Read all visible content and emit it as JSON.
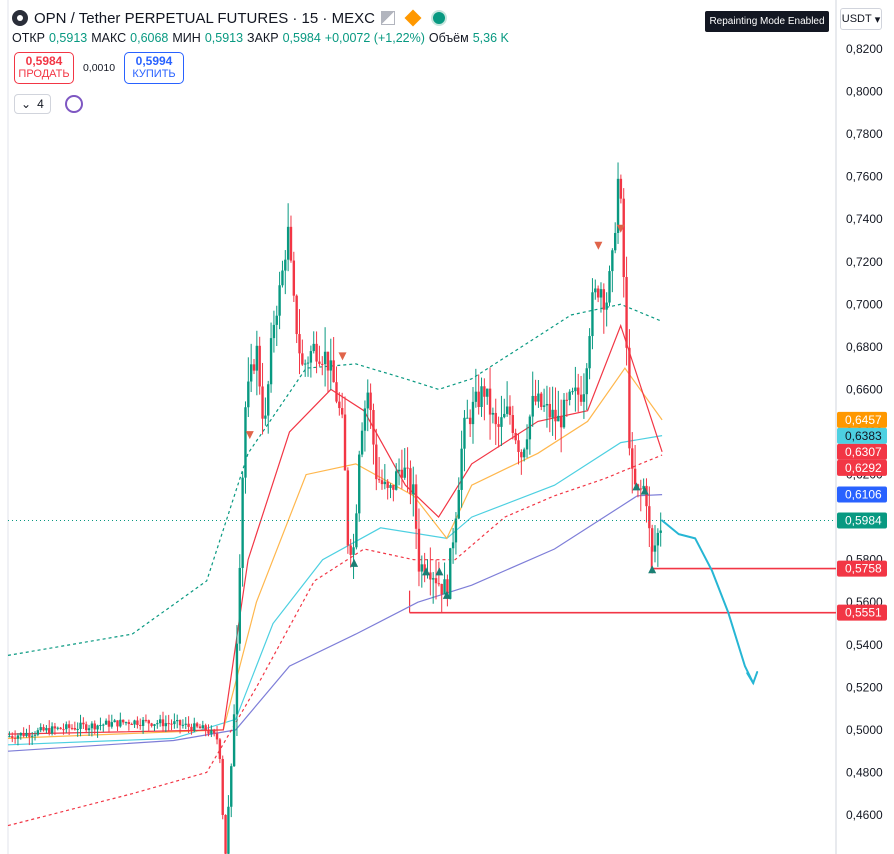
{
  "header": {
    "title": "OPN / Tether PERPETUAL FUTURES · 15 · MEXC",
    "icons": [
      "logo-icon",
      "flag-icon",
      "diamond-icon",
      "status-dot-icon"
    ]
  },
  "ohlc": {
    "open_label": "ОТКР",
    "open": "0,5913",
    "high_label": "МАКС",
    "high": "0,6068",
    "low_label": "МИН",
    "low": "0,5913",
    "close_label": "ЗАКР",
    "close": "0,5984",
    "change": "+0,0072 (+1,22%)",
    "volume_label": "Объём",
    "volume": "5,36 K"
  },
  "trade": {
    "sell_price": "0,5984",
    "sell_label": "ПРОДАТЬ",
    "spread": "0,0010",
    "buy_price": "0,5994",
    "buy_label": "КУПИТЬ"
  },
  "indicators": {
    "count": "4"
  },
  "badge": "Repainting Mode Enabled",
  "currency": "USDT",
  "colors": {
    "up": "#089981",
    "down": "#f23645",
    "orange": "#ff9800",
    "cyan": "#4dd0e1",
    "red": "#f23645",
    "blue": "#2962ff",
    "green": "#089981",
    "purple_ma": "#7e7ed8"
  },
  "chart_data": {
    "type": "line",
    "y_axis": {
      "range": [
        0.44,
        0.83
      ],
      "ticks": [
        "0,8200",
        "0,8000",
        "0,7800",
        "0,7600",
        "0,7400",
        "0,7200",
        "0,7000",
        "0,6800",
        "0,6600",
        "0,6400",
        "0,6200",
        "0,6000",
        "0,5800",
        "0,5600",
        "0,5400",
        "0,5200",
        "0,5000",
        "0,4800",
        "0,4600"
      ],
      "position": "right"
    },
    "price_labels": [
      {
        "value": 0.6457,
        "text": "0,6457",
        "color": "#ff9800",
        "text_color": "#ffffff"
      },
      {
        "value": 0.6383,
        "text": "0,6383",
        "color": "#4dd0e1",
        "text_color": "#131722"
      },
      {
        "value": 0.6307,
        "text": "0,6307",
        "color": "#f23645",
        "text_color": "#ffffff"
      },
      {
        "value": 0.6292,
        "text": "0,6292",
        "color": "#f23645",
        "text_color": "#ffffff"
      },
      {
        "value": 0.6106,
        "text": "0,6106",
        "color": "#2962ff",
        "text_color": "#ffffff"
      },
      {
        "value": 0.5984,
        "text": "0,5984",
        "color": "#089981",
        "text_color": "#ffffff"
      },
      {
        "value": 0.5758,
        "text": "0,5758",
        "color": "#f23645",
        "text_color": "#ffffff"
      },
      {
        "value": 0.5551,
        "text": "0,5551",
        "color": "#f23645",
        "text_color": "#ffffff"
      }
    ],
    "horizontal_lines": [
      {
        "value": 0.5758,
        "from": 0.777,
        "color": "#f23645"
      },
      {
        "value": 0.5551,
        "from": 0.485,
        "color": "#f23645"
      }
    ],
    "current_price": 0.5984,
    "price_path": [
      [
        0.0,
        0.497
      ],
      [
        0.05,
        0.5
      ],
      [
        0.1,
        0.502
      ],
      [
        0.15,
        0.504
      ],
      [
        0.2,
        0.503
      ],
      [
        0.24,
        0.5
      ],
      [
        0.255,
        0.495
      ],
      [
        0.262,
        0.44
      ],
      [
        0.27,
        0.48
      ],
      [
        0.278,
        0.56
      ],
      [
        0.286,
        0.65
      ],
      [
        0.3,
        0.68
      ],
      [
        0.31,
        0.64
      ],
      [
        0.32,
        0.69
      ],
      [
        0.33,
        0.71
      ],
      [
        0.338,
        0.735
      ],
      [
        0.345,
        0.7
      ],
      [
        0.355,
        0.67
      ],
      [
        0.37,
        0.68
      ],
      [
        0.385,
        0.675
      ],
      [
        0.395,
        0.66
      ],
      [
        0.405,
        0.64
      ],
      [
        0.41,
        0.59
      ],
      [
        0.418,
        0.585
      ],
      [
        0.425,
        0.64
      ],
      [
        0.435,
        0.66
      ],
      [
        0.445,
        0.62
      ],
      [
        0.46,
        0.61
      ],
      [
        0.475,
        0.625
      ],
      [
        0.49,
        0.61
      ],
      [
        0.497,
        0.575
      ],
      [
        0.505,
        0.58
      ],
      [
        0.52,
        0.57
      ],
      [
        0.53,
        0.565
      ],
      [
        0.54,
        0.6
      ],
      [
        0.55,
        0.64
      ],
      [
        0.56,
        0.65
      ],
      [
        0.575,
        0.66
      ],
      [
        0.59,
        0.64
      ],
      [
        0.605,
        0.65
      ],
      [
        0.62,
        0.63
      ],
      [
        0.635,
        0.655
      ],
      [
        0.65,
        0.65
      ],
      [
        0.665,
        0.645
      ],
      [
        0.68,
        0.655
      ],
      [
        0.695,
        0.66
      ],
      [
        0.705,
        0.7
      ],
      [
        0.715,
        0.71
      ],
      [
        0.722,
        0.7
      ],
      [
        0.73,
        0.72
      ],
      [
        0.738,
        0.765
      ],
      [
        0.745,
        0.7
      ],
      [
        0.752,
        0.62
      ],
      [
        0.76,
        0.61
      ],
      [
        0.77,
        0.615
      ],
      [
        0.777,
        0.58
      ],
      [
        0.785,
        0.592
      ],
      [
        0.79,
        0.5984
      ]
    ],
    "series": [
      {
        "color": "#7e7ed8",
        "style": "solid",
        "points": [
          [
            0.0,
            0.49
          ],
          [
            0.2,
            0.495
          ],
          [
            0.275,
            0.5
          ],
          [
            0.34,
            0.53
          ],
          [
            0.42,
            0.545
          ],
          [
            0.495,
            0.56
          ],
          [
            0.56,
            0.568
          ],
          [
            0.66,
            0.585
          ],
          [
            0.74,
            0.605
          ],
          [
            0.76,
            0.61
          ],
          [
            0.79,
            0.6106
          ]
        ]
      },
      {
        "color": "#4dd0e1",
        "style": "solid",
        "points": [
          [
            0.0,
            0.493
          ],
          [
            0.2,
            0.496
          ],
          [
            0.275,
            0.505
          ],
          [
            0.32,
            0.55
          ],
          [
            0.38,
            0.58
          ],
          [
            0.45,
            0.595
          ],
          [
            0.53,
            0.59
          ],
          [
            0.56,
            0.6
          ],
          [
            0.66,
            0.615
          ],
          [
            0.74,
            0.635
          ],
          [
            0.79,
            0.6383
          ]
        ]
      },
      {
        "color": "#ffb74d",
        "style": "solid",
        "points": [
          [
            0.0,
            0.496
          ],
          [
            0.26,
            0.5
          ],
          [
            0.3,
            0.56
          ],
          [
            0.36,
            0.62
          ],
          [
            0.42,
            0.625
          ],
          [
            0.49,
            0.61
          ],
          [
            0.53,
            0.59
          ],
          [
            0.56,
            0.615
          ],
          [
            0.64,
            0.63
          ],
          [
            0.7,
            0.645
          ],
          [
            0.745,
            0.67
          ],
          [
            0.79,
            0.6457
          ]
        ]
      },
      {
        "color": "#f23645",
        "style": "solid",
        "points": [
          [
            0.0,
            0.498
          ],
          [
            0.26,
            0.5
          ],
          [
            0.29,
            0.58
          ],
          [
            0.34,
            0.64
          ],
          [
            0.39,
            0.66
          ],
          [
            0.43,
            0.65
          ],
          [
            0.48,
            0.615
          ],
          [
            0.52,
            0.6
          ],
          [
            0.56,
            0.625
          ],
          [
            0.64,
            0.645
          ],
          [
            0.7,
            0.65
          ],
          [
            0.74,
            0.69
          ],
          [
            0.79,
            0.6307
          ]
        ]
      },
      {
        "color": "#f23645",
        "style": "dashed",
        "points": [
          [
            0.0,
            0.455
          ],
          [
            0.15,
            0.47
          ],
          [
            0.24,
            0.48
          ],
          [
            0.3,
            0.52
          ],
          [
            0.37,
            0.57
          ],
          [
            0.43,
            0.585
          ],
          [
            0.49,
            0.58
          ],
          [
            0.54,
            0.58
          ],
          [
            0.6,
            0.6
          ],
          [
            0.66,
            0.61
          ],
          [
            0.72,
            0.618
          ],
          [
            0.79,
            0.6292
          ]
        ]
      },
      {
        "color": "#089981",
        "style": "dashed",
        "points": [
          [
            0.0,
            0.535
          ],
          [
            0.15,
            0.545
          ],
          [
            0.24,
            0.57
          ],
          [
            0.29,
            0.63
          ],
          [
            0.36,
            0.67
          ],
          [
            0.42,
            0.672
          ],
          [
            0.48,
            0.665
          ],
          [
            0.52,
            0.66
          ],
          [
            0.56,
            0.665
          ],
          [
            0.62,
            0.68
          ],
          [
            0.68,
            0.695
          ],
          [
            0.74,
            0.7
          ],
          [
            0.79,
            0.692
          ]
        ]
      }
    ],
    "projection": [
      [
        0.79,
        0.5984
      ],
      [
        0.81,
        0.592
      ],
      [
        0.83,
        0.59
      ],
      [
        0.85,
        0.575
      ],
      [
        0.87,
        0.555
      ],
      [
        0.89,
        0.53
      ],
      [
        0.9,
        0.522
      ]
    ],
    "markers": [
      {
        "x": 0.292,
        "y": 0.639,
        "type": "down"
      },
      {
        "x": 0.404,
        "y": 0.676,
        "type": "down"
      },
      {
        "x": 0.418,
        "y": 0.578,
        "type": "up"
      },
      {
        "x": 0.505,
        "y": 0.574,
        "type": "up"
      },
      {
        "x": 0.521,
        "y": 0.574,
        "type": "up"
      },
      {
        "x": 0.53,
        "y": 0.563,
        "type": "up"
      },
      {
        "x": 0.713,
        "y": 0.728,
        "type": "down"
      },
      {
        "x": 0.74,
        "y": 0.736,
        "type": "down"
      },
      {
        "x": 0.759,
        "y": 0.614,
        "type": "up"
      },
      {
        "x": 0.769,
        "y": 0.612,
        "type": "up"
      },
      {
        "x": 0.778,
        "y": 0.575,
        "type": "up"
      }
    ]
  }
}
